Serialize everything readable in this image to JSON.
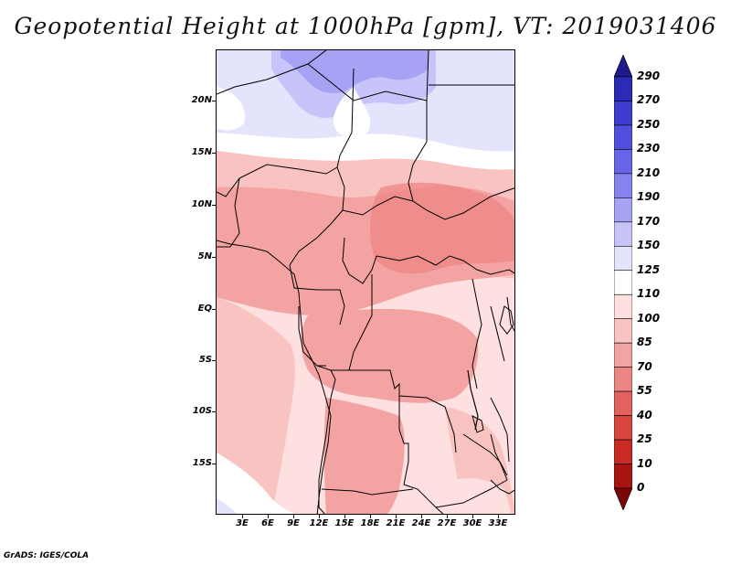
{
  "title": "Geopotential Height at 1000hPa [gpm], VT: 2019031406",
  "credit": "GrADS: IGES/COLA",
  "lat_labels": [
    "20N",
    "15N",
    "10N",
    "5N",
    "EQ",
    "5S",
    "10S",
    "15S"
  ],
  "lon_labels": [
    "3E",
    "6E",
    "9E",
    "12E",
    "15E",
    "18E",
    "21E",
    "24E",
    "27E",
    "30E",
    "33E"
  ],
  "colorbar": {
    "levels": [
      "290",
      "270",
      "250",
      "230",
      "210",
      "190",
      "170",
      "150",
      "125",
      "110",
      "100",
      "85",
      "70",
      "55",
      "40",
      "25",
      "10",
      "0"
    ],
    "colors": [
      "#1e1a8c",
      "#2b2bb4",
      "#3c3cd0",
      "#5050dc",
      "#6a64e6",
      "#8682ee",
      "#a6a2f4",
      "#c6c4f8",
      "#e4e4fc",
      "#ffffff",
      "#fde0df",
      "#f9c3c1",
      "#f3a4a2",
      "#ec8683",
      "#e2625e",
      "#d84640",
      "#c82a24",
      "#a81510",
      "#7a0505"
    ]
  }
}
